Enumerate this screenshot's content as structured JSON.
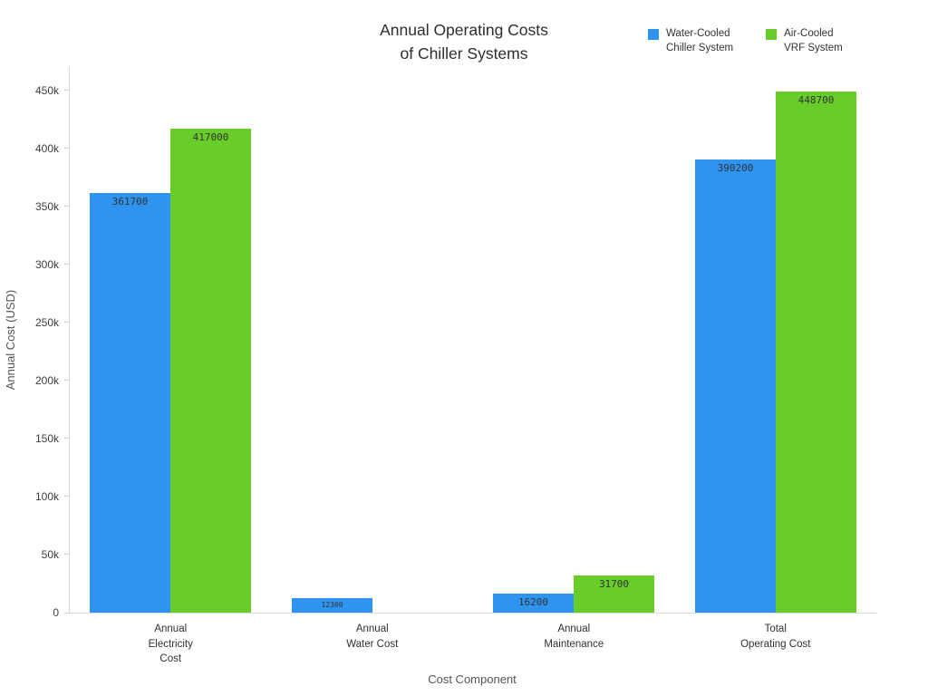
{
  "title": {
    "line1": "Annual Operating Costs",
    "line2": "of Chiller Systems"
  },
  "legend": [
    {
      "line1": "Water-Cooled",
      "line2": "Chiller System",
      "color": "#2E94F0"
    },
    {
      "line1": "Air-Cooled",
      "line2": "VRF System",
      "color": "#68CC29"
    }
  ],
  "chart_data": {
    "type": "bar",
    "title": "Annual Operating Costs of Chiller Systems",
    "xlabel": "Cost Component",
    "ylabel": "Annual Cost (USD)",
    "categories": [
      [
        "Annual",
        "Electricity",
        "Cost"
      ],
      [
        "Annual",
        "Water Cost"
      ],
      [
        "Annual",
        "Maintenance"
      ],
      [
        "Total",
        "Operating Cost"
      ]
    ],
    "series": [
      {
        "name": "Water-Cooled Chiller System",
        "color": "#2E94F0",
        "values": [
          361700,
          12300,
          16200,
          390200
        ]
      },
      {
        "name": "Air-Cooled VRF System",
        "color": "#68CC29",
        "values": [
          417000,
          0,
          31700,
          448700
        ]
      }
    ],
    "bar_labels": true,
    "label_color": "#333333",
    "ylim": [
      0,
      470000
    ],
    "yticks": [
      {
        "v": 0,
        "label": "0"
      },
      {
        "v": 50000,
        "label": "50k"
      },
      {
        "v": 100000,
        "label": "100k"
      },
      {
        "v": 150000,
        "label": "150k"
      },
      {
        "v": 200000,
        "label": "200k"
      },
      {
        "v": 250000,
        "label": "250k"
      },
      {
        "v": 300000,
        "label": "300k"
      },
      {
        "v": 350000,
        "label": "350k"
      },
      {
        "v": 400000,
        "label": "400k"
      },
      {
        "v": 450000,
        "label": "450k"
      }
    ],
    "grid": false,
    "legend_position": "top-right"
  }
}
